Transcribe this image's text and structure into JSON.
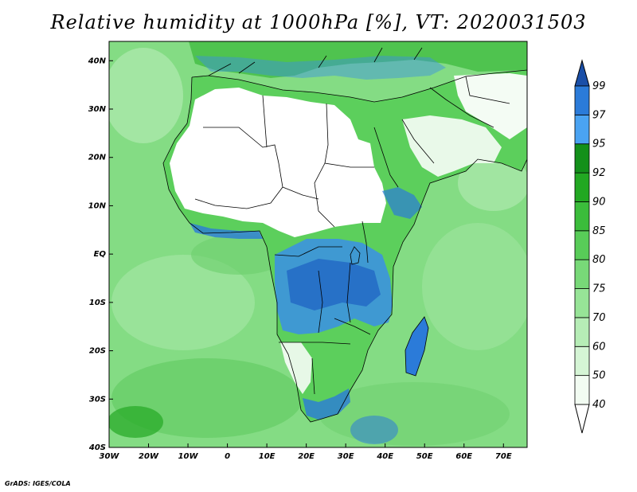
{
  "title": "Relative humidity at 1000hPa [%], VT: 2020031503",
  "credit": "GrADS: IGES/COLA",
  "map": {
    "lon_range": [
      -30,
      76
    ],
    "lat_range": [
      -40,
      44
    ],
    "lon_ticks": [
      {
        "value": -30,
        "label": "30W"
      },
      {
        "value": -20,
        "label": "20W"
      },
      {
        "value": -10,
        "label": "10W"
      },
      {
        "value": 0,
        "label": "0"
      },
      {
        "value": 10,
        "label": "10E"
      },
      {
        "value": 20,
        "label": "20E"
      },
      {
        "value": 30,
        "label": "30E"
      },
      {
        "value": 40,
        "label": "40E"
      },
      {
        "value": 50,
        "label": "50E"
      },
      {
        "value": 60,
        "label": "60E"
      },
      {
        "value": 70,
        "label": "70E"
      }
    ],
    "lat_ticks": [
      {
        "value": 40,
        "label": "40N"
      },
      {
        "value": 30,
        "label": "30N"
      },
      {
        "value": 20,
        "label": "20N"
      },
      {
        "value": 10,
        "label": "10N"
      },
      {
        "value": 0,
        "label": "EQ"
      },
      {
        "value": -10,
        "label": "10S"
      },
      {
        "value": -20,
        "label": "20S"
      },
      {
        "value": -30,
        "label": "30S"
      },
      {
        "value": -40,
        "label": "40S"
      }
    ]
  },
  "colorbar": {
    "levels": [
      "40",
      "50",
      "60",
      "70",
      "75",
      "80",
      "85",
      "90",
      "92",
      "95",
      "97",
      "99"
    ],
    "colors": [
      "#f2fcf2",
      "#d5f5d5",
      "#b6edb6",
      "#97e497",
      "#78d978",
      "#58cc58",
      "#3bbd3b",
      "#22a822",
      "#13901a",
      "#4aa3f2",
      "#2b7bd9",
      "#1e5fc2",
      "#1a4fa8"
    ]
  }
}
